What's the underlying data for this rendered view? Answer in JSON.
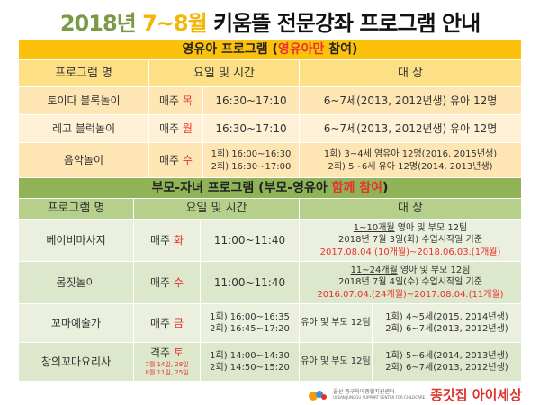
{
  "title": {
    "part1": "2018년",
    "part2": "7~8월",
    "part3": "키움뜰 전문강좌 프로그램 안내"
  },
  "infant": {
    "header_pre": "영유아 프로그램 (",
    "header_red": "영유아만",
    "header_post": " 참여)",
    "cols": [
      "프로그램 명",
      "요일 및 시간",
      "대 상"
    ],
    "rows": [
      {
        "name": "토이다 블록놀이",
        "day_pre": "매주 ",
        "day": "목",
        "time": "16:30~17:10",
        "target": "6~7세(2013, 2012년생) 유아 12명"
      },
      {
        "name": "레고 블럭놀이",
        "day_pre": "매주 ",
        "day": "월",
        "time": "16:30~17:10",
        "target": "6~7세(2013, 2012년생) 유아 12명"
      },
      {
        "name": "음악놀이",
        "day_pre": "매주 ",
        "day": "수",
        "time1": "1회) 16:00~16:30",
        "time2": "2회) 16:30~17:00",
        "target1": "1회) 3~4세 영유아 12명(2016, 2015년생)",
        "target2": "2회) 5~6세 유아 12명(2014, 2013년생)"
      }
    ]
  },
  "parent": {
    "header_pre": "부모-자녀 프로그램 (부모-영유아 ",
    "header_red": "함께 참여",
    "header_post": ")",
    "cols": [
      "프로그램 명",
      "요일 및 시간",
      "대 상"
    ],
    "rows": [
      {
        "name": "베이비마사지",
        "day_pre": "매주 ",
        "day": "화",
        "time": "11:00~11:40",
        "t_u": "1~10개월",
        "t_rest": " 영아 및 부모 12팀",
        "t2": "2018년 7월 3일(화) 수업시작일 기준",
        "t3": "2017.08.04.(10개월)~2018.06.03.(1개월)"
      },
      {
        "name": "몸짓놀이",
        "day_pre": "매주 ",
        "day": "수",
        "time": "11:00~11:40",
        "t_u": "11~24개월",
        "t_rest": " 영아 및 부모 12팀",
        "t2": "2018년 7월 4일(수) 수업시작일 기준",
        "t3": "2016.07.04.(24개월)~2017.08.04.(11개월)"
      },
      {
        "name": "꼬마예술가",
        "day_pre": "매주 ",
        "day": "금",
        "time1": "1회) 16:00~16:35",
        "time2": "2회) 16:45~17:20",
        "team": "유아 및 부모 12팀",
        "target1": "1회) 4~5세(2015, 2014년생)",
        "target2": "2회) 6~7세(2013, 2012년생)"
      },
      {
        "name": "창의꼬마요리사",
        "day_pre": "격주 ",
        "day": "토",
        "dates1": "7월 14일, 28일",
        "dates2": "8월 11일, 25일",
        "time1": "1회) 14:00~14:30",
        "time2": "2회) 14:50~15:20",
        "team": "유아 및 부모 12팀",
        "target1": "1회) 5~6세(2014, 2013년생)",
        "target2": "2회) 6~7세(2013, 2012년생)"
      }
    ]
  },
  "logo": {
    "org_ko": "울산 중구육아종합지원센터",
    "org_en": "ULSAN JUNGGU SUPPORT CENTER FOR CHILDCARE",
    "brand": "종갓집 아이세상"
  },
  "colors": {
    "yellow": "#fcc10b",
    "green": "#8fb356",
    "red": "#e8312f"
  }
}
